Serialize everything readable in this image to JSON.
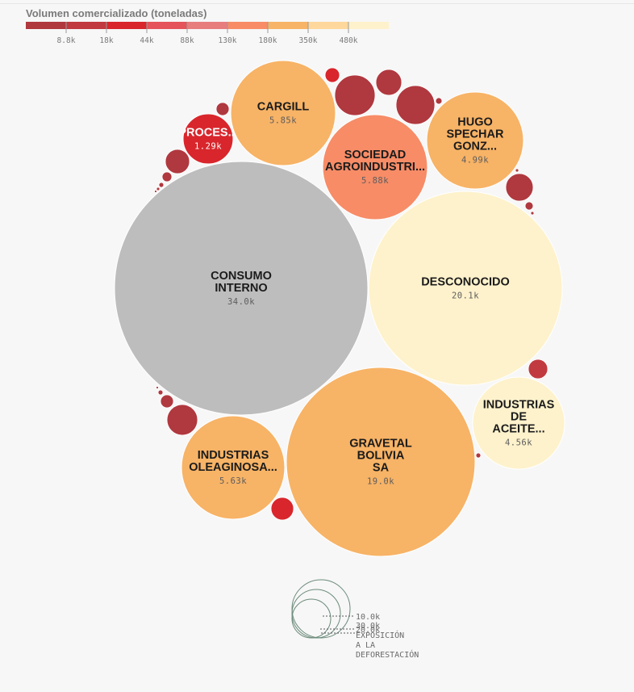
{
  "legend": {
    "title": "Volumen comercializado (toneladas)",
    "colors": [
      "#b0383f",
      "#c13a3f",
      "#d8262c",
      "#e4545a",
      "#e87d7e",
      "#f78c67",
      "#f7b366",
      "#fdd79b",
      "#fef2cc"
    ],
    "ticks": [
      "8.8k",
      "18k",
      "44k",
      "88k",
      "130k",
      "180k",
      "350k",
      "480k"
    ]
  },
  "chart_data": {
    "type": "bubble",
    "bubbles": [
      {
        "name": "CONSUMO INTERNO",
        "value": "34.0k",
        "color": "#bdbdbd"
      },
      {
        "name": "DESCONOCIDO",
        "value": "20.1k",
        "color": "#fef2cc"
      },
      {
        "name": "GRAVETAL BOLIVIA SA",
        "value": "19.0k",
        "color": "#f7b366"
      },
      {
        "name": "SOCIEDAD AGROINDUSTRI...",
        "value": "5.88k",
        "color": "#f78c67"
      },
      {
        "name": "CARGILL",
        "value": "5.85k",
        "color": "#f7b366"
      },
      {
        "name": "INDUSTRIAS OLEAGINOSA...",
        "value": "5.63k",
        "color": "#f7b366"
      },
      {
        "name": "HUGO SPECHAR GONZ...",
        "value": "4.99k",
        "color": "#f7b366"
      },
      {
        "name": "INDUSTRIAS DE ACEITE...",
        "value": "4.56k",
        "color": "#fef2cc"
      },
      {
        "name": "PROCES...",
        "value": "1.29k",
        "color": "#d8262c"
      }
    ]
  },
  "size_legend": {
    "labels": [
      "10.0k",
      "30.0k",
      "20.0k",
      "EXPOSICIÓN A LA DEFORESTACIÓN"
    ]
  }
}
